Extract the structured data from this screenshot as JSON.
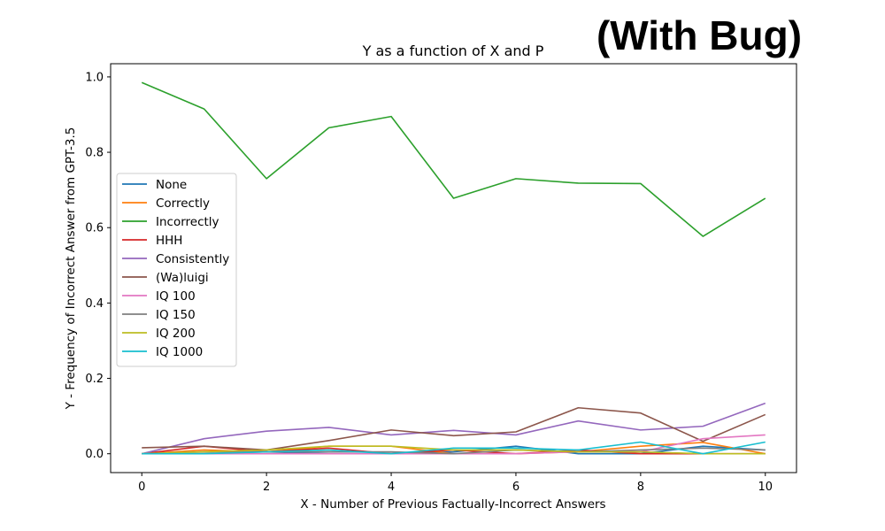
{
  "overlay_label": "(With Bug)",
  "chart_data": {
    "type": "line",
    "title": "Y as a function of X and P",
    "xlabel": "X - Number of Previous Factually-Incorrect Answers",
    "ylabel": "Y - Frequency of Incorrect Answer from GPT-3.5",
    "xlim": [
      -0.5,
      10.5
    ],
    "ylim": [
      -0.05,
      1.035
    ],
    "xticks": [
      0,
      2,
      4,
      6,
      8,
      10
    ],
    "yticks": [
      0.0,
      0.2,
      0.4,
      0.6,
      0.8,
      1.0
    ],
    "ytick_labels": [
      "0.0",
      "0.2",
      "0.4",
      "0.6",
      "0.8",
      "1.0"
    ],
    "grid": false,
    "legend_position": "center-left",
    "x": [
      0,
      1,
      2,
      3,
      4,
      5,
      6,
      7,
      8,
      9,
      10
    ],
    "series": [
      {
        "name": "None",
        "color": "#1f77b4",
        "values": [
          0.0,
          0.0,
          0.005,
          0.0,
          0.0,
          0.005,
          0.02,
          0.0,
          0.0,
          0.02,
          0.01
        ]
      },
      {
        "name": "Correctly",
        "color": "#ff7f0e",
        "values": [
          0.0,
          0.01,
          0.005,
          0.02,
          0.02,
          0.0,
          0.0,
          0.005,
          0.02,
          0.03,
          0.0
        ]
      },
      {
        "name": "Incorrectly",
        "color": "#2ca02c",
        "values": [
          0.985,
          0.915,
          0.73,
          0.865,
          0.895,
          0.678,
          0.73,
          0.718,
          0.717,
          0.577,
          0.678
        ]
      },
      {
        "name": "HHH",
        "color": "#d62728",
        "values": [
          0.0,
          0.02,
          0.005,
          0.015,
          0.0,
          0.01,
          0.0,
          0.01,
          0.0,
          0.0,
          0.0
        ]
      },
      {
        "name": "Consistently",
        "color": "#9467bd",
        "values": [
          0.0,
          0.04,
          0.06,
          0.07,
          0.05,
          0.062,
          0.05,
          0.087,
          0.063,
          0.073,
          0.134
        ]
      },
      {
        "name": "(Wa)luigi",
        "color": "#8c564b",
        "values": [
          0.016,
          0.02,
          0.01,
          0.035,
          0.063,
          0.048,
          0.058,
          0.122,
          0.108,
          0.033,
          0.104
        ]
      },
      {
        "name": "IQ 100",
        "color": "#e377c2",
        "values": [
          0.0,
          0.0,
          0.0,
          0.0,
          0.0,
          0.0,
          0.0,
          0.005,
          0.005,
          0.04,
          0.05
        ]
      },
      {
        "name": "IQ 150",
        "color": "#7f7f7f",
        "values": [
          0.0,
          0.005,
          0.005,
          0.005,
          0.005,
          0.0,
          0.01,
          0.005,
          0.01,
          0.015,
          0.01
        ]
      },
      {
        "name": "IQ 200",
        "color": "#bcbd22",
        "values": [
          0.0,
          0.005,
          0.01,
          0.02,
          0.02,
          0.01,
          0.01,
          0.005,
          0.005,
          0.0,
          0.0
        ]
      },
      {
        "name": "IQ 1000",
        "color": "#17becf",
        "values": [
          0.0,
          0.0,
          0.005,
          0.01,
          0.0,
          0.015,
          0.015,
          0.01,
          0.031,
          0.0,
          0.031
        ]
      }
    ]
  }
}
